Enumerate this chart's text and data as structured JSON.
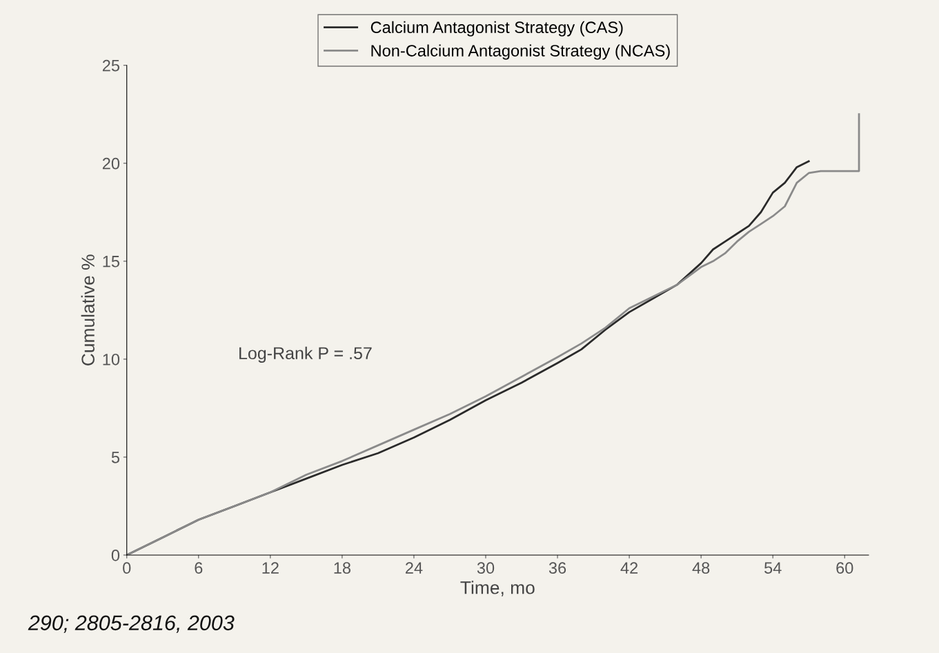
{
  "chart_data": {
    "type": "line",
    "xlabel": "Time, mo",
    "ylabel": "Cumulative %",
    "x": [
      0,
      3,
      6,
      9,
      12,
      15,
      18,
      21,
      24,
      27,
      30,
      33,
      36,
      38,
      40,
      42,
      44,
      46,
      48,
      49,
      50,
      51,
      52,
      53,
      54,
      55,
      56,
      57
    ],
    "series": [
      {
        "name": "Calcium Antagonist Strategy (CAS)",
        "color": "#2a2a2a",
        "values": [
          0,
          0.9,
          1.8,
          2.5,
          3.2,
          3.9,
          4.6,
          5.2,
          6.0,
          6.9,
          7.9,
          8.8,
          9.8,
          10.5,
          11.5,
          12.4,
          13.1,
          13.8,
          14.9,
          15.6,
          16.0,
          16.4,
          16.8,
          17.5,
          18.5,
          19.0,
          19.8,
          20.1
        ]
      },
      {
        "name": "Non-Calcium Antagonist Strategy (NCAS)",
        "color": "#8a8a8a",
        "x": [
          0,
          3,
          6,
          9,
          12,
          15,
          18,
          21,
          24,
          27,
          30,
          33,
          36,
          38,
          40,
          42,
          44,
          46,
          48,
          49,
          50,
          51,
          52,
          53,
          54,
          55,
          56,
          57,
          58,
          61.2,
          61.2
        ],
        "values": [
          0,
          0.9,
          1.8,
          2.5,
          3.2,
          4.1,
          4.8,
          5.6,
          6.4,
          7.2,
          8.1,
          9.1,
          10.1,
          10.8,
          11.6,
          12.6,
          13.2,
          13.8,
          14.7,
          15.0,
          15.4,
          16.0,
          16.5,
          16.9,
          17.3,
          17.8,
          19.0,
          19.5,
          19.6,
          19.6,
          22.5
        ]
      }
    ],
    "xlim": [
      0,
      62
    ],
    "xticks": [
      0,
      6,
      12,
      18,
      24,
      30,
      36,
      42,
      48,
      54,
      60
    ],
    "ylim": [
      0,
      25
    ],
    "yticks": [
      0,
      5,
      10,
      15,
      20,
      25
    ],
    "legend": "top",
    "grid": false,
    "annotations": [
      "Log-Rank P = .57",
      "290; 2805-2816, 2003"
    ]
  }
}
